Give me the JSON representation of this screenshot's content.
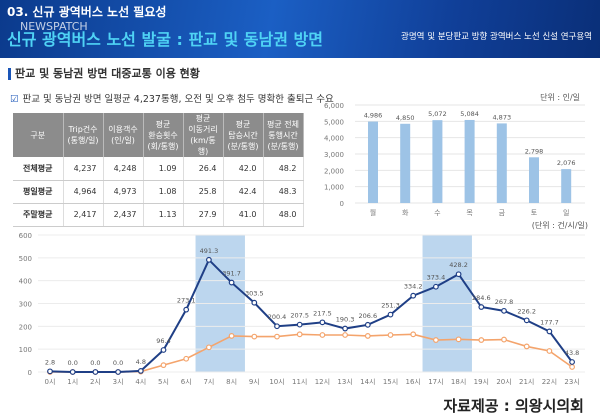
{
  "header": {
    "section": "03. 신규 광역버스 노선 필요성",
    "title": "신규 광역버스 노선 발굴 : 판교 및 동남권 방면",
    "subtitle": "광명역 및 분당판교 방향 광역버스 노선 신설 연구용역",
    "watermark": "NEWSPATCH"
  },
  "section_heading": "판교 및 동남권 방면 대중교통 이용 현황",
  "check_text": "판교 및 동남권 방면 일평균 4,237통행, 오전 및 오후 첨두 명확한 출퇴근 수요",
  "table": {
    "headers": [
      [
        "구분"
      ],
      [
        "Trip건수",
        "(통행/일)"
      ],
      [
        "이용객수",
        "(인/일)"
      ],
      [
        "평균",
        "환승횟수",
        "(회/통행)"
      ],
      [
        "평균",
        "이동거리",
        "(km/통행)"
      ],
      [
        "평균",
        "탑승시간",
        "(분/통행)"
      ],
      [
        "평균 전체",
        "통행시간",
        "(분/통행)"
      ]
    ],
    "rows": [
      [
        "전체평균",
        "4,237",
        "4,248",
        "1.09",
        "26.4",
        "42.0",
        "48.2"
      ],
      [
        "평일평균",
        "4,964",
        "4,973",
        "1.08",
        "25.8",
        "42.4",
        "48.3"
      ],
      [
        "주말평균",
        "2,417",
        "2,437",
        "1.13",
        "27.9",
        "41.0",
        "48.0"
      ]
    ]
  },
  "chart_data": [
    {
      "type": "bar",
      "unit_label": "단위 : 인/일",
      "categories": [
        "월",
        "화",
        "수",
        "목",
        "금",
        "토",
        "일"
      ],
      "values": [
        4986,
        4850,
        5072,
        5084,
        4873,
        2798,
        2076
      ],
      "data_labels": [
        "4,986",
        "4,850",
        "5,072",
        "5,084",
        "4,873",
        "2,798",
        "2,076"
      ],
      "ylim": [
        0,
        6000
      ],
      "yticks": [
        "0",
        "1,000",
        "2,000",
        "3,000",
        "4,000",
        "5,000",
        "6,000"
      ],
      "grid": true,
      "color": "#9dc3e6"
    },
    {
      "type": "line",
      "unit_label": "(단위 : 건/시/일)",
      "categories": [
        "0시",
        "1시",
        "2시",
        "3시",
        "4시",
        "5시",
        "6시",
        "7시",
        "8시",
        "9시",
        "10시",
        "11시",
        "12시",
        "13시",
        "14시",
        "15시",
        "16시",
        "17시",
        "18시",
        "19시",
        "20시",
        "21시",
        "22시",
        "23시"
      ],
      "ylim": [
        0,
        600
      ],
      "yticks": [
        "0",
        "100",
        "200",
        "300",
        "400",
        "500",
        "600"
      ],
      "grid": true,
      "highlight_bands": [
        [
          "7시",
          "8시"
        ],
        [
          "17시",
          "18시"
        ]
      ],
      "series": [
        {
          "color": "#1f3f86",
          "values": [
            2.8,
            0,
            0,
            0,
            4.8,
            96.4,
            273.1,
            491.3,
            391.7,
            303.5,
            200.4,
            207.5,
            217.5,
            190.3,
            206.6,
            251.3,
            334.2,
            373.4,
            428.2,
            284.6,
            267.8,
            226.2,
            177.7,
            43.8
          ],
          "data_labels": [
            "2.8",
            "0.0",
            "0.0",
            "0.0",
            "4.8",
            "96.4",
            "273.1",
            "491.3",
            "391.7",
            "303.5",
            "200.4",
            "207.5",
            "217.5",
            "190.3",
            "206.6",
            "251.3",
            "334.2",
            "373.4",
            "428.2",
            "284.6",
            "267.8",
            "226.2",
            "177.7",
            "43.8"
          ]
        },
        {
          "color": "#f4a46c",
          "values": [
            0,
            0,
            0,
            0,
            2,
            30,
            58,
            108,
            158,
            155,
            155,
            165,
            162,
            162,
            158,
            162,
            165,
            140,
            143,
            140,
            142,
            112,
            92,
            22
          ]
        }
      ]
    }
  ],
  "credit": "자료제공 : 의왕시의회"
}
